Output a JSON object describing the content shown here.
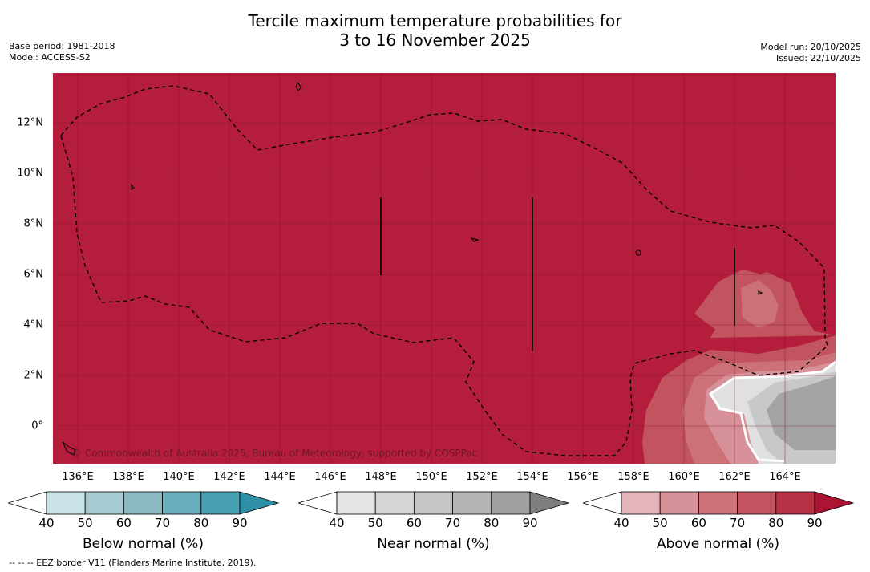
{
  "title_line1": "Tercile maximum temperature probabilities for",
  "title_line2": "3 to 16 November 2025",
  "base_period": "Base period: 1981-2018",
  "model": "Model: ACCESS-S2",
  "model_run": "Model run: 20/10/2025",
  "issued": "Issued: 22/10/2025",
  "credit": "© Commonwealth of Australia 2025, Bureau of Meteorology, supported by COSPPac",
  "footer": "--  --  -- EEZ border V11 (Flanders Marine Institute, 2019).",
  "x_ticks": [
    "136°E",
    "138°E",
    "140°E",
    "142°E",
    "144°E",
    "146°E",
    "148°E",
    "150°E",
    "152°E",
    "154°E",
    "156°E",
    "158°E",
    "160°E",
    "162°E",
    "164°E"
  ],
  "y_ticks": [
    "12°N",
    "10°N",
    "8°N",
    "6°N",
    "4°N",
    "2°N",
    "0°"
  ],
  "legends": [
    {
      "title": "Below normal (%)",
      "ticks": [
        "40",
        "50",
        "60",
        "70",
        "80",
        "90"
      ],
      "colors": [
        "#ffffff",
        "#c9e2e8",
        "#a7cad1",
        "#8ab8c3",
        "#6aaebb",
        "#47a0b1",
        "#2f8fa6"
      ]
    },
    {
      "title": "Near normal (%)",
      "ticks": [
        "40",
        "50",
        "60",
        "70",
        "80",
        "90"
      ],
      "colors": [
        "#ffffff",
        "#e6e6e6",
        "#d5d5d5",
        "#c5c5c5",
        "#b3b3b3",
        "#a0a0a0",
        "#7e7e7e"
      ]
    },
    {
      "title": "Above normal (%)",
      "ticks": [
        "40",
        "50",
        "60",
        "70",
        "80",
        "90"
      ],
      "colors": [
        "#ffffff",
        "#e3b5bb",
        "#d79198",
        "#cc7178",
        "#c2545f",
        "#b73145",
        "#ab1533"
      ]
    }
  ],
  "colors": {
    "map_base": "#b41e3c",
    "above_70": "#c2545f",
    "above_60": "#cc7178",
    "above_50": "#d79198",
    "near_40": "#e0e0e0",
    "near_60": "#c8c8c8",
    "near_80": "#a4a4a4"
  }
}
